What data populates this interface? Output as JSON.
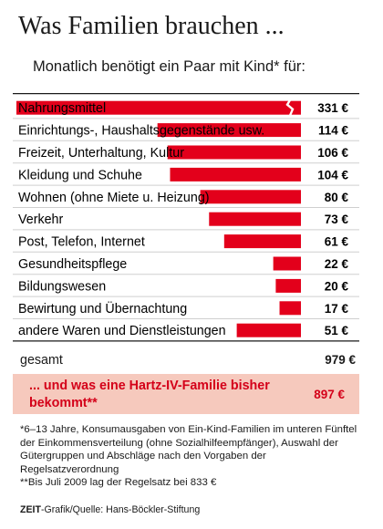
{
  "title": "Was Familien brauchen ...",
  "subtitle": "Monatlich benötigt ein Paar mit Kind* für:",
  "chart_data": {
    "type": "bar",
    "orientation": "horizontal",
    "unit": "€",
    "categories": [
      "Nahrungsmittel",
      "Einrichtungs-, Haushaltsgegenstände usw.",
      "Freizeit, Unterhaltung, Kultur",
      "Kleidung und Schuhe",
      "Wohnen (ohne Miete u. Heizung)",
      "Verkehr",
      "Post, Telefon, Internet",
      "Gesundheitspflege",
      "Bildungswesen",
      "Bewirtung und Übernachtung",
      "andere Waren und Dienstleistungen"
    ],
    "values": [
      331,
      114,
      106,
      104,
      80,
      73,
      61,
      22,
      20,
      17,
      51
    ],
    "value_labels": [
      "331 €",
      "114 €",
      "106 €",
      "104 €",
      "80 €",
      "73 €",
      "61 €",
      "22 €",
      "20 €",
      "17 €",
      "51 €"
    ],
    "axis_break_on": "Nahrungsmittel",
    "bar_color": "#e3001b",
    "grid": false
  },
  "total": {
    "label": "gesamt",
    "value": "979 €"
  },
  "hartz": {
    "label": "... und was eine Hartz-IV-Familie bisher bekommt**",
    "value": "897 €",
    "background": "#f6c9bd",
    "color": "#d40019"
  },
  "footnotes": [
    "*6–13 Jahre, Konsumausgaben von Ein-Kind-Familien im unteren Fünftel der Einkommensverteilung (ohne Sozialhilfeempfänger), Auswahl der Gütergruppen und Abschläge nach den Vorgaben der Regelsatzverordnung",
    "**Bis Juli 2009 lag der Regelsatz bei 833 €"
  ],
  "source": {
    "brand": "ZEIT",
    "text": "-Grafik/Quelle: Hans-Böckler-Stiftung"
  }
}
